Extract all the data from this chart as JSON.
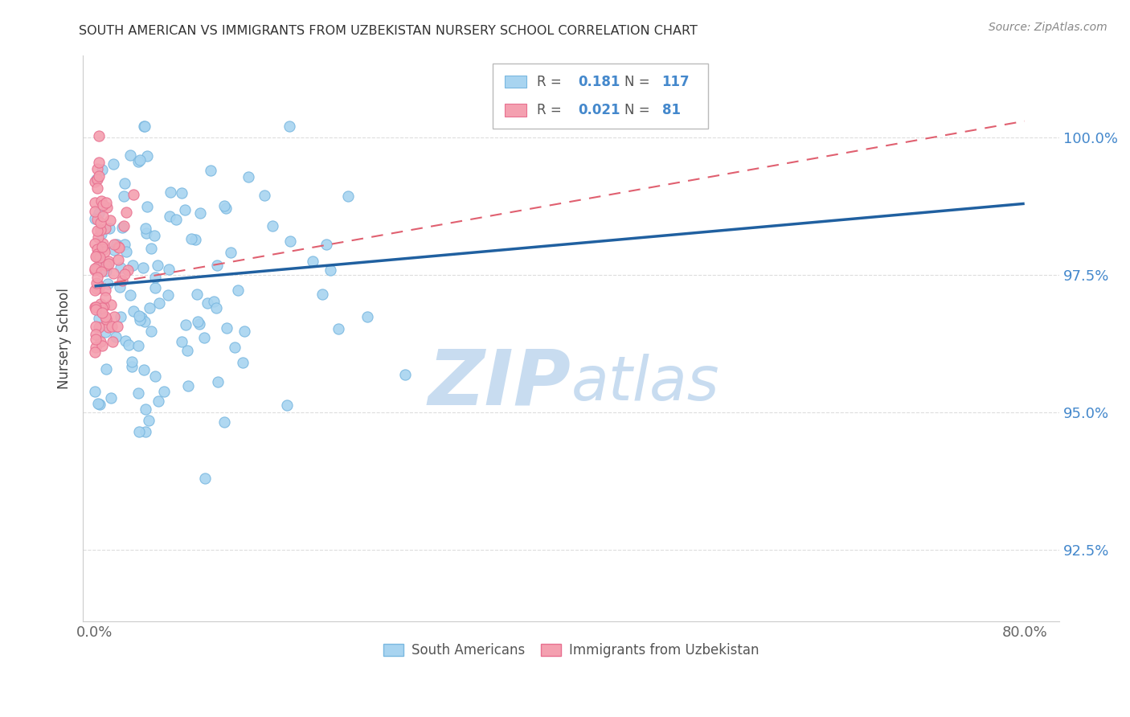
{
  "title": "SOUTH AMERICAN VS IMMIGRANTS FROM UZBEKISTAN NURSERY SCHOOL CORRELATION CHART",
  "source": "Source: ZipAtlas.com",
  "ylabel": "Nursery School",
  "xlim_data": [
    -1,
    82
  ],
  "ylim_data": [
    91.2,
    101.5
  ],
  "yticks": [
    92.5,
    95.0,
    97.5,
    100.0
  ],
  "xticks": [
    0.0,
    80.0
  ],
  "xtick_labels": [
    "0.0%",
    "80.0%"
  ],
  "ytick_labels": [
    "92.5%",
    "95.0%",
    "97.5%",
    "100.0%"
  ],
  "legend_blue_r": "0.181",
  "legend_blue_n": "117",
  "legend_pink_r": "0.021",
  "legend_pink_n": "81",
  "blue_scatter_color": "#A8D4F0",
  "blue_edge_color": "#7AB8E0",
  "pink_scatter_color": "#F4A0B0",
  "pink_edge_color": "#E87090",
  "blue_line_color": "#2060A0",
  "pink_line_color": "#E06070",
  "watermark_color": "#C8DCF0",
  "grid_color": "#DDDDDD",
  "ytick_color": "#4488CC",
  "xtick_color": "#666666",
  "ylabel_color": "#444444",
  "title_color": "#333333",
  "source_color": "#888888"
}
